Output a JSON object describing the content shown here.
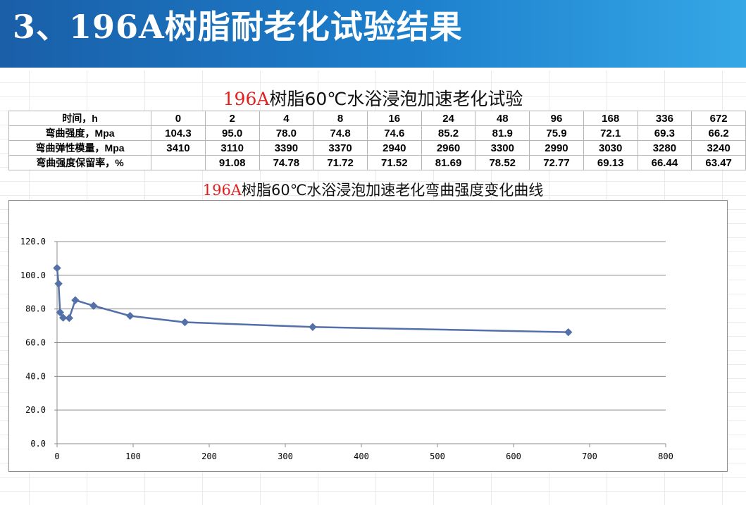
{
  "header": {
    "title": "3、196A树脂耐老化试验结果"
  },
  "table": {
    "title_red": "196A",
    "title_rest": "树脂60℃水浴浸泡加速老化试验",
    "rows": [
      {
        "label": "时间，h",
        "cells": [
          "0",
          "2",
          "4",
          "8",
          "16",
          "24",
          "48",
          "96",
          "168",
          "336",
          "672"
        ]
      },
      {
        "label": "弯曲强度，Mpa",
        "cells": [
          "104.3",
          "95.0",
          "78.0",
          "74.8",
          "74.6",
          "85.2",
          "81.9",
          "75.9",
          "72.1",
          "69.3",
          "66.2"
        ]
      },
      {
        "label": "弯曲弹性模量，Mpa",
        "cells": [
          "3410",
          "3110",
          "3390",
          "3370",
          "2940",
          "2960",
          "3300",
          "2990",
          "3030",
          "3280",
          "3240"
        ]
      },
      {
        "label": "弯曲强度保留率，%",
        "cells": [
          "",
          "91.08",
          "74.78",
          "71.72",
          "71.52",
          "81.69",
          "78.52",
          "72.77",
          "69.13",
          "66.44",
          "63.47"
        ]
      }
    ]
  },
  "chart_data": {
    "type": "line",
    "title_red": "196A",
    "title_rest": "树脂60℃水浴浸泡加速老化弯曲强度变化曲线",
    "x": [
      0,
      2,
      4,
      8,
      16,
      24,
      48,
      96,
      168,
      336,
      672
    ],
    "y": [
      104.3,
      95.0,
      78.0,
      74.8,
      74.6,
      85.2,
      81.9,
      75.9,
      72.1,
      69.3,
      66.2
    ],
    "xlim": [
      0,
      800
    ],
    "ylim": [
      0,
      120
    ],
    "xticks": [
      "0",
      "100",
      "200",
      "300",
      "400",
      "500",
      "600",
      "700",
      "800"
    ],
    "yticks": [
      "0.0",
      "20.0",
      "40.0",
      "60.0",
      "80.0",
      "100.0",
      "120.0"
    ],
    "grid": "horizontal",
    "line_color": "#5470a8",
    "marker": "diamond"
  }
}
